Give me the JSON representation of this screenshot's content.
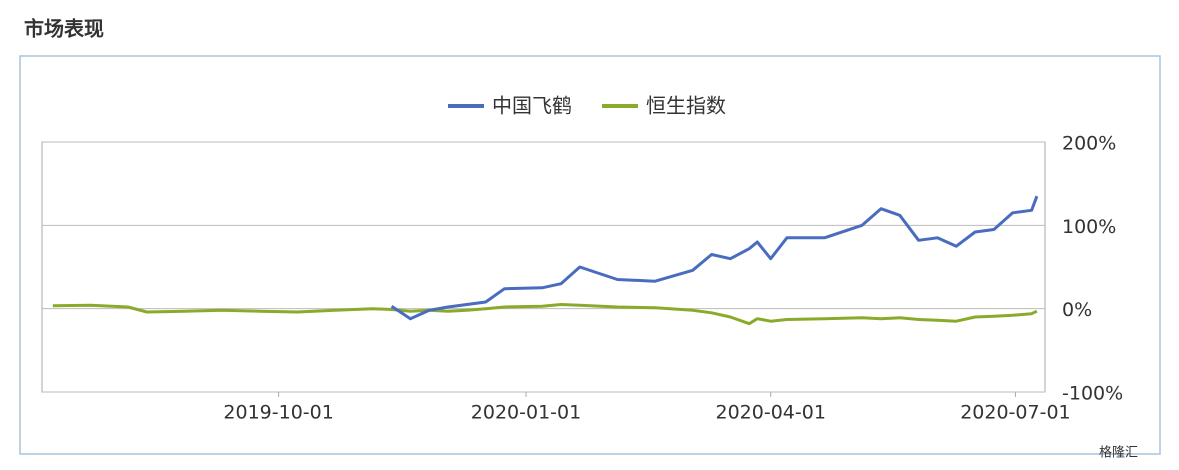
{
  "chart_data": {
    "type": "line",
    "title": "市场表现",
    "watermark": "格隆汇",
    "x": [
      "2019-07-09",
      "2019-07-23",
      "2019-08-06",
      "2019-08-13",
      "2019-08-27",
      "2019-09-10",
      "2019-09-24",
      "2019-10-08",
      "2019-10-22",
      "2019-11-05",
      "2019-11-12",
      "2019-11-19",
      "2019-11-26",
      "2019-12-03",
      "2019-12-10",
      "2019-12-17",
      "2019-12-24",
      "2020-01-07",
      "2020-01-14",
      "2020-01-21",
      "2020-02-04",
      "2020-02-18",
      "2020-03-03",
      "2020-03-10",
      "2020-03-17",
      "2020-03-24",
      "2020-03-27",
      "2020-04-01",
      "2020-04-07",
      "2020-04-21",
      "2020-05-05",
      "2020-05-12",
      "2020-05-19",
      "2020-05-26",
      "2020-06-02",
      "2020-06-09",
      "2020-06-16",
      "2020-06-23",
      "2020-06-30",
      "2020-07-07",
      "2020-07-09"
    ],
    "series": [
      {
        "name": "中国飞鹤",
        "color": "#4a6cbf",
        "values": [
          null,
          null,
          null,
          null,
          null,
          null,
          null,
          null,
          null,
          null,
          3,
          -12,
          -2,
          2,
          5,
          8,
          24,
          25,
          30,
          50,
          35,
          33,
          46,
          65,
          60,
          72,
          80,
          60,
          85,
          85,
          100,
          120,
          112,
          82,
          85,
          75,
          92,
          95,
          115,
          118,
          135
        ]
      },
      {
        "name": "恒生指数",
        "color": "#8aaa2c",
        "values": [
          3.5,
          4,
          2,
          -4,
          -3,
          -2,
          -3,
          -4,
          -2,
          0,
          -1,
          -3,
          -2,
          -3,
          -2,
          0,
          2,
          3,
          5,
          4,
          2,
          1,
          -2,
          -5,
          -10,
          -18,
          -12,
          -15,
          -13,
          -12,
          -11,
          -12,
          -11,
          -13,
          -14,
          -15,
          -10,
          -9,
          -8,
          -6,
          -3
        ]
      }
    ],
    "xlim": [
      "2019-07-05",
      "2020-07-12"
    ],
    "xticks": [
      "2019-10-01",
      "2020-01-01",
      "2020-04-01",
      "2020-07-01"
    ],
    "ylim": [
      -100,
      200
    ],
    "yticks": [
      {
        "value": -100,
        "label": "-100%"
      },
      {
        "value": 0,
        "label": "0%"
      },
      {
        "value": 100,
        "label": "100%"
      },
      {
        "value": 200,
        "label": "200%"
      }
    ],
    "grid": true,
    "legend": "top"
  }
}
